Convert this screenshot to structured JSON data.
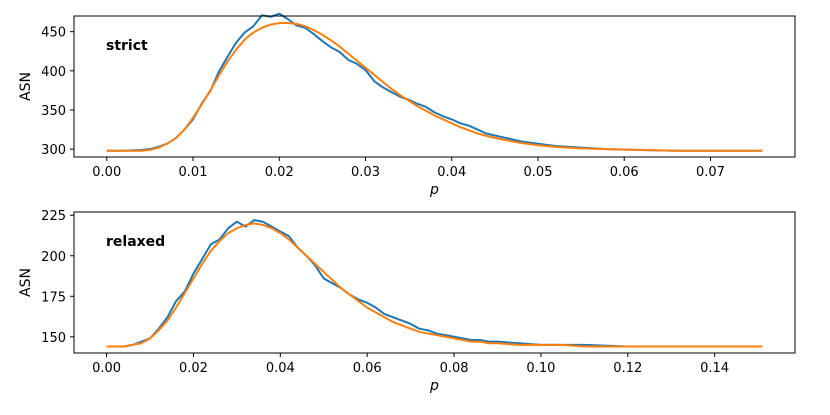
{
  "chart_data": [
    {
      "type": "line",
      "annotation": "strict",
      "xlabel": "p",
      "ylabel": "ASN",
      "xlim": [
        -0.0038,
        0.0798
      ],
      "ylim": [
        290,
        470
      ],
      "xticks": [
        0.0,
        0.01,
        0.02,
        0.03,
        0.04,
        0.05,
        0.06,
        0.07
      ],
      "xtick_labels": [
        "0.00",
        "0.01",
        "0.02",
        "0.03",
        "0.04",
        "0.05",
        "0.06",
        "0.07"
      ],
      "yticks": [
        300,
        350,
        400,
        450
      ],
      "ytick_labels": [
        "300",
        "350",
        "400",
        "450"
      ],
      "grid": false,
      "series": [
        {
          "color": "#1f77b4",
          "x": [
            0.0,
            0.002,
            0.004,
            0.005,
            0.006,
            0.007,
            0.008,
            0.009,
            0.01,
            0.011,
            0.012,
            0.013,
            0.014,
            0.015,
            0.016,
            0.017,
            0.018,
            0.019,
            0.02,
            0.021,
            0.022,
            0.023,
            0.024,
            0.025,
            0.026,
            0.027,
            0.028,
            0.029,
            0.03,
            0.031,
            0.032,
            0.033,
            0.034,
            0.035,
            0.036,
            0.037,
            0.038,
            0.039,
            0.04,
            0.041,
            0.042,
            0.043,
            0.044,
            0.046,
            0.048,
            0.05,
            0.052,
            0.055,
            0.058,
            0.062,
            0.066,
            0.07,
            0.074,
            0.076
          ],
          "y": [
            298,
            298,
            299,
            300,
            303,
            307,
            314,
            325,
            338,
            358,
            374,
            399,
            418,
            436,
            449,
            457,
            471,
            469,
            473,
            466,
            458,
            455,
            447,
            438,
            430,
            424,
            414,
            409,
            401,
            387,
            379,
            373,
            367,
            363,
            358,
            354,
            347,
            342,
            338,
            333,
            330,
            325,
            320,
            315,
            310,
            307,
            304,
            302,
            300,
            299,
            298,
            298,
            298,
            298
          ]
        },
        {
          "color": "#ff7f0e",
          "x": [
            0.0,
            0.002,
            0.004,
            0.005,
            0.006,
            0.007,
            0.008,
            0.009,
            0.01,
            0.011,
            0.012,
            0.013,
            0.014,
            0.015,
            0.016,
            0.017,
            0.018,
            0.019,
            0.02,
            0.021,
            0.022,
            0.023,
            0.024,
            0.025,
            0.026,
            0.027,
            0.028,
            0.029,
            0.03,
            0.031,
            0.032,
            0.033,
            0.034,
            0.035,
            0.036,
            0.037,
            0.038,
            0.039,
            0.04,
            0.041,
            0.042,
            0.043,
            0.044,
            0.046,
            0.048,
            0.05,
            0.052,
            0.055,
            0.058,
            0.062,
            0.066,
            0.07,
            0.074,
            0.076
          ],
          "y": [
            298,
            298,
            298,
            299,
            302,
            307,
            314,
            325,
            340,
            357,
            375,
            394,
            412,
            427,
            440,
            449,
            455,
            459,
            461,
            461,
            460,
            457,
            452,
            446,
            439,
            431,
            422,
            413,
            404,
            395,
            386,
            377,
            369,
            362,
            355,
            349,
            343,
            338,
            333,
            328,
            324,
            320,
            317,
            312,
            308,
            305,
            303,
            301,
            300,
            299,
            298,
            298,
            298,
            298
          ]
        }
      ]
    },
    {
      "type": "line",
      "annotation": "relaxed",
      "xlabel": "p",
      "ylabel": "ASN",
      "xlim": [
        -0.0075,
        0.1585
      ],
      "ylim": [
        140,
        227
      ],
      "xticks": [
        0.0,
        0.02,
        0.04,
        0.06,
        0.08,
        0.1,
        0.12,
        0.14
      ],
      "xtick_labels": [
        "0.00",
        "0.02",
        "0.04",
        "0.06",
        "0.08",
        "0.10",
        "0.12",
        "0.14"
      ],
      "yticks": [
        150,
        175,
        200,
        225
      ],
      "ytick_labels": [
        "150",
        "175",
        "200",
        "225"
      ],
      "grid": false,
      "series": [
        {
          "color": "#1f77b4",
          "x": [
            0.0,
            0.004,
            0.006,
            0.008,
            0.01,
            0.012,
            0.014,
            0.016,
            0.018,
            0.02,
            0.022,
            0.024,
            0.026,
            0.028,
            0.03,
            0.032,
            0.034,
            0.036,
            0.038,
            0.04,
            0.042,
            0.044,
            0.046,
            0.048,
            0.05,
            0.052,
            0.054,
            0.056,
            0.058,
            0.06,
            0.062,
            0.064,
            0.066,
            0.068,
            0.07,
            0.072,
            0.074,
            0.076,
            0.078,
            0.08,
            0.082,
            0.084,
            0.086,
            0.088,
            0.09,
            0.095,
            0.1,
            0.105,
            0.11,
            0.12,
            0.13,
            0.14,
            0.151
          ],
          "y": [
            144,
            144,
            145,
            147,
            149,
            155,
            162,
            172,
            178,
            189,
            198,
            207,
            210,
            217,
            221,
            218,
            222,
            221,
            218,
            215,
            212,
            205,
            200,
            194,
            186,
            183,
            180,
            176,
            173,
            171,
            168,
            164,
            162,
            160,
            158,
            155,
            154,
            152,
            151,
            150,
            149,
            148,
            148,
            147,
            147,
            146,
            145,
            145,
            145,
            144,
            144,
            144,
            144
          ]
        },
        {
          "color": "#ff7f0e",
          "x": [
            0.0,
            0.004,
            0.006,
            0.008,
            0.01,
            0.012,
            0.014,
            0.016,
            0.018,
            0.02,
            0.022,
            0.024,
            0.026,
            0.028,
            0.03,
            0.032,
            0.034,
            0.036,
            0.038,
            0.04,
            0.042,
            0.044,
            0.046,
            0.048,
            0.05,
            0.052,
            0.054,
            0.056,
            0.058,
            0.06,
            0.062,
            0.064,
            0.066,
            0.068,
            0.07,
            0.072,
            0.074,
            0.076,
            0.078,
            0.08,
            0.082,
            0.084,
            0.086,
            0.088,
            0.09,
            0.095,
            0.1,
            0.105,
            0.11,
            0.12,
            0.13,
            0.14,
            0.151
          ],
          "y": [
            144,
            144,
            145,
            146,
            149,
            154,
            160,
            168,
            177,
            186,
            195,
            203,
            209,
            214,
            217,
            219,
            220,
            219,
            217,
            214,
            210,
            205,
            200,
            195,
            190,
            185,
            180,
            176,
            172,
            168,
            165,
            162,
            159,
            157,
            155,
            153,
            152,
            151,
            150,
            149,
            148,
            147,
            147,
            146,
            146,
            145,
            145,
            145,
            144,
            144,
            144,
            144,
            144
          ]
        }
      ]
    }
  ]
}
